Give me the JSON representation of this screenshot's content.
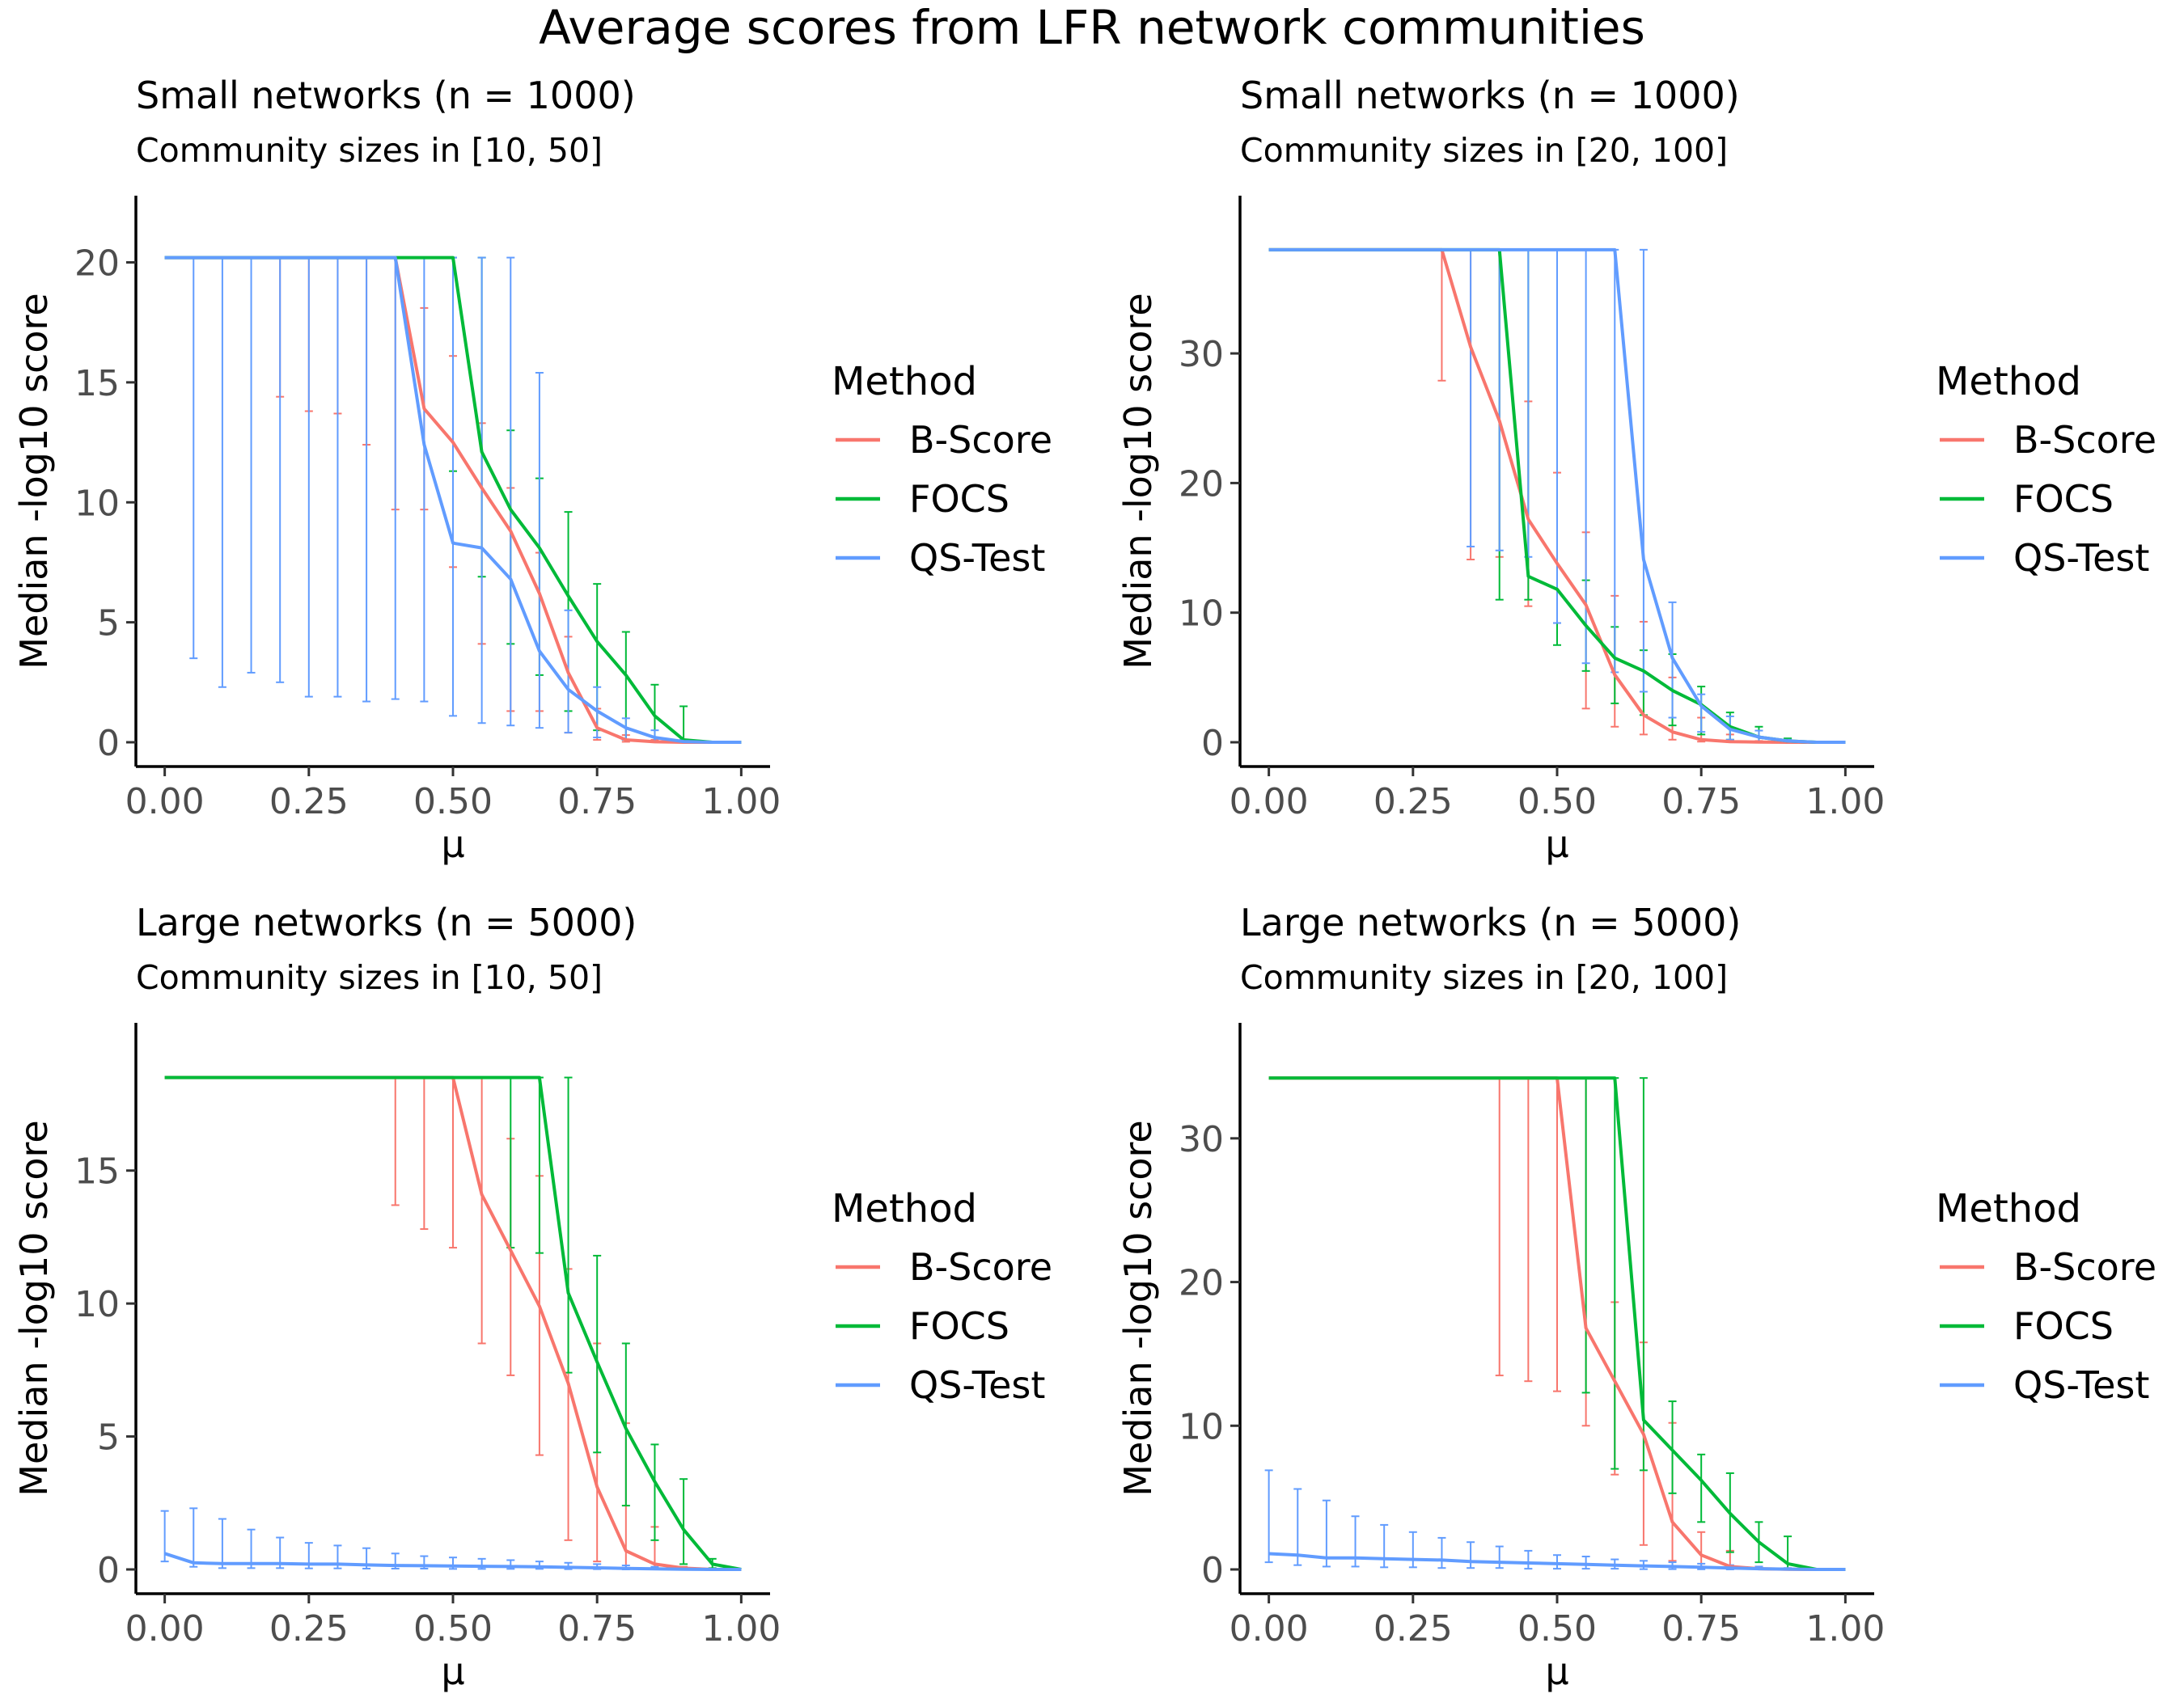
{
  "figure_title": "Average scores from LFR network communities",
  "colors": {
    "B-Score": "#F8766D",
    "FOCS": "#00BA38",
    "QS-Test": "#619CFF"
  },
  "chart_data": [
    {
      "type": "line",
      "title": "Small networks (n = 1000)",
      "subtitle": "Community sizes in [10, 50]",
      "xlabel": "μ",
      "ylabel": "Median -log10 score",
      "xlim": [
        0,
        1
      ],
      "ylim": [
        0,
        21.5
      ],
      "xticks": [
        0,
        0.25,
        0.5,
        0.75,
        1
      ],
      "xtick_labels": [
        "0.00",
        "0.25",
        "0.50",
        "0.75",
        "1.00"
      ],
      "yticks": [
        0,
        5,
        10,
        15,
        20
      ],
      "ytick_labels": [
        "0",
        "5",
        "10",
        "15",
        "20"
      ],
      "legend_title": "Method",
      "legend_position": "right",
      "x": [
        0,
        0.05,
        0.1,
        0.15,
        0.2,
        0.25,
        0.3,
        0.35,
        0.4,
        0.45,
        0.5,
        0.55,
        0.6,
        0.65,
        0.7,
        0.75,
        0.8,
        0.85,
        0.9,
        0.95,
        1.0
      ],
      "series": [
        {
          "name": "B-Score",
          "values": [
            20.2,
            20.2,
            20.2,
            20.2,
            20.2,
            20.2,
            20.2,
            20.2,
            20.2,
            13.9,
            12.5,
            10.6,
            8.8,
            6.2,
            2.9,
            0.6,
            0.1,
            0.02,
            0,
            0,
            0
          ],
          "lower": [
            null,
            null,
            null,
            null,
            14.4,
            13.8,
            13.7,
            12.4,
            9.7,
            9.7,
            7.3,
            4.1,
            1.3,
            1.3,
            0.4,
            0.1,
            0.02,
            0,
            0,
            0,
            0
          ],
          "upper": [
            null,
            null,
            null,
            null,
            20.2,
            20.2,
            20.2,
            20.2,
            20.2,
            18.1,
            16.1,
            13.3,
            10.6,
            7.9,
            4.4,
            1.4,
            0.3,
            0.1,
            0,
            0,
            0
          ]
        },
        {
          "name": "FOCS",
          "values": [
            20.2,
            20.2,
            20.2,
            20.2,
            20.2,
            20.2,
            20.2,
            20.2,
            20.2,
            20.2,
            20.2,
            12.1,
            9.7,
            8.1,
            6.1,
            4.2,
            2.8,
            1.1,
            0.1,
            0,
            0
          ],
          "lower": [
            null,
            null,
            null,
            null,
            null,
            null,
            null,
            null,
            null,
            null,
            11.3,
            6.9,
            4.1,
            2.8,
            1.3,
            0.5,
            0.1,
            0.02,
            0,
            0,
            0
          ],
          "upper": [
            null,
            null,
            null,
            null,
            null,
            null,
            null,
            null,
            null,
            null,
            20.2,
            20.2,
            13.0,
            11.0,
            9.6,
            6.6,
            4.6,
            2.4,
            1.5,
            0,
            0
          ]
        },
        {
          "name": "QS-Test",
          "values": [
            20.2,
            20.2,
            20.2,
            20.2,
            20.2,
            20.2,
            20.2,
            20.2,
            20.2,
            12.4,
            8.3,
            8.1,
            6.8,
            3.8,
            2.2,
            1.3,
            0.6,
            0.2,
            0.03,
            0,
            0
          ],
          "lower": [
            null,
            3.5,
            2.3,
            2.9,
            2.5,
            1.9,
            1.9,
            1.7,
            1.8,
            1.7,
            1.1,
            0.8,
            0.7,
            0.6,
            0.4,
            0.2,
            0.1,
            0.02,
            0,
            0,
            0
          ],
          "upper": [
            null,
            20.2,
            20.2,
            20.2,
            20.2,
            20.2,
            20.2,
            20.2,
            20.2,
            20.2,
            20.2,
            20.2,
            20.2,
            15.4,
            5.5,
            2.3,
            1.0,
            0.5,
            0.1,
            0,
            0
          ]
        }
      ]
    },
    {
      "type": "line",
      "title": "Small networks (n = 1000)",
      "subtitle": "Community sizes in [20, 100]",
      "xlabel": "μ",
      "ylabel": "Median -log10 score",
      "xlim": [
        0,
        1
      ],
      "ylim": [
        0,
        39.8
      ],
      "xticks": [
        0,
        0.25,
        0.5,
        0.75,
        1
      ],
      "xtick_labels": [
        "0.00",
        "0.25",
        "0.50",
        "0.75",
        "1.00"
      ],
      "yticks": [
        0,
        10,
        20,
        30
      ],
      "ytick_labels": [
        "0",
        "10",
        "20",
        "30"
      ],
      "legend_title": "Method",
      "legend_position": "right",
      "x": [
        0,
        0.05,
        0.1,
        0.15,
        0.2,
        0.25,
        0.3,
        0.35,
        0.4,
        0.45,
        0.5,
        0.55,
        0.6,
        0.65,
        0.7,
        0.75,
        0.8,
        0.85,
        0.9,
        0.95,
        1.0
      ],
      "series": [
        {
          "name": "B-Score",
          "values": [
            38,
            38,
            38,
            38,
            38,
            38,
            38,
            30.5,
            24.8,
            17.2,
            13.8,
            10.6,
            5.2,
            2.1,
            0.8,
            0.2,
            0.05,
            0.01,
            0,
            0,
            0
          ],
          "lower": [
            null,
            null,
            null,
            null,
            null,
            null,
            27.9,
            14.1,
            14.3,
            10.5,
            9.2,
            2.6,
            1.2,
            0.6,
            0.2,
            0.05,
            0.01,
            0,
            0,
            0,
            0
          ],
          "upper": [
            null,
            null,
            null,
            null,
            null,
            null,
            38,
            38,
            38,
            26.3,
            20.8,
            16.2,
            11.3,
            9.3,
            5.0,
            1.9,
            0.6,
            0.1,
            0,
            0,
            0
          ]
        },
        {
          "name": "FOCS",
          "values": [
            38,
            38,
            38,
            38,
            38,
            38,
            38,
            38,
            38,
            12.8,
            11.8,
            9.0,
            6.5,
            5.5,
            4.0,
            2.9,
            1.2,
            0.4,
            0.1,
            0,
            0
          ],
          "lower": [
            null,
            null,
            null,
            null,
            null,
            null,
            null,
            null,
            11.0,
            11.0,
            7.5,
            5.5,
            3.0,
            2.1,
            1.3,
            0.6,
            0.2,
            0.05,
            0,
            0,
            0
          ],
          "upper": [
            null,
            null,
            null,
            null,
            null,
            null,
            null,
            null,
            38,
            38,
            38,
            12.5,
            8.9,
            7.1,
            6.8,
            4.3,
            2.3,
            1.2,
            0.3,
            0,
            0
          ]
        },
        {
          "name": "QS-Test",
          "values": [
            38,
            38,
            38,
            38,
            38,
            38,
            38,
            38,
            38,
            38,
            38,
            38,
            38,
            14.1,
            6.5,
            2.8,
            1.0,
            0.4,
            0.1,
            0,
            0
          ],
          "lower": [
            null,
            null,
            null,
            null,
            null,
            null,
            null,
            15.1,
            14.8,
            14.3,
            9.2,
            6.1,
            5.4,
            3.9,
            1.9,
            0.8,
            0.2,
            0.05,
            0,
            0,
            0
          ],
          "upper": [
            null,
            null,
            null,
            null,
            null,
            null,
            null,
            38,
            38,
            38,
            38,
            38,
            38,
            38,
            10.8,
            3.7,
            2.0,
            0.9,
            0.2,
            0,
            0
          ]
        }
      ]
    },
    {
      "type": "line",
      "title": "Large networks (n = 5000)",
      "subtitle": "Community sizes in [10, 50]",
      "xlabel": "μ",
      "ylabel": "Median -log10 score",
      "xlim": [
        0,
        1
      ],
      "ylim": [
        0,
        19.4
      ],
      "xticks": [
        0,
        0.25,
        0.5,
        0.75,
        1
      ],
      "xtick_labels": [
        "0.00",
        "0.25",
        "0.50",
        "0.75",
        "1.00"
      ],
      "yticks": [
        0,
        5,
        10,
        15
      ],
      "ytick_labels": [
        "0",
        "5",
        "10",
        "15"
      ],
      "legend_title": "Method",
      "legend_position": "right",
      "x": [
        0,
        0.05,
        0.1,
        0.15,
        0.2,
        0.25,
        0.3,
        0.35,
        0.4,
        0.45,
        0.5,
        0.55,
        0.6,
        0.65,
        0.7,
        0.75,
        0.8,
        0.85,
        0.9,
        0.95,
        1.0
      ],
      "series": [
        {
          "name": "B-Score",
          "values": [
            18.5,
            18.5,
            18.5,
            18.5,
            18.5,
            18.5,
            18.5,
            18.5,
            18.5,
            18.5,
            18.5,
            14.1,
            12.0,
            9.9,
            7.0,
            3.1,
            0.7,
            0.2,
            0.05,
            0,
            0
          ],
          "lower": [
            null,
            null,
            null,
            null,
            null,
            null,
            null,
            null,
            13.7,
            12.8,
            12.1,
            8.5,
            7.3,
            4.3,
            1.1,
            0.3,
            0.05,
            0.01,
            0,
            0,
            0
          ],
          "upper": [
            null,
            null,
            null,
            null,
            null,
            null,
            null,
            null,
            18.5,
            18.5,
            18.5,
            18.5,
            16.2,
            14.8,
            11.3,
            8.5,
            5.5,
            1.6,
            0.1,
            0,
            0
          ]
        },
        {
          "name": "FOCS",
          "values": [
            18.5,
            18.5,
            18.5,
            18.5,
            18.5,
            18.5,
            18.5,
            18.5,
            18.5,
            18.5,
            18.5,
            18.5,
            18.5,
            18.5,
            10.4,
            7.8,
            5.3,
            3.3,
            1.5,
            0.2,
            0
          ],
          "lower": [
            null,
            null,
            null,
            null,
            null,
            null,
            null,
            null,
            null,
            null,
            null,
            null,
            12.1,
            11.9,
            7.4,
            4.4,
            2.4,
            1.1,
            0.2,
            0.05,
            0
          ],
          "upper": [
            null,
            null,
            null,
            null,
            null,
            null,
            null,
            null,
            null,
            null,
            null,
            null,
            18.5,
            18.5,
            18.5,
            11.8,
            8.5,
            4.7,
            3.4,
            0.4,
            0
          ]
        },
        {
          "name": "QS-Test",
          "values": [
            0.6,
            0.25,
            0.22,
            0.22,
            0.22,
            0.2,
            0.2,
            0.17,
            0.15,
            0.14,
            0.13,
            0.12,
            0.11,
            0.1,
            0.08,
            0.06,
            0.04,
            0.02,
            0.01,
            0,
            0
          ],
          "lower": [
            0.3,
            0.1,
            0.05,
            0.05,
            0.05,
            0.04,
            0.04,
            0.03,
            0.03,
            0.03,
            0.02,
            0.02,
            0.02,
            0.02,
            0.01,
            0.01,
            0,
            0,
            0,
            0,
            0
          ],
          "upper": [
            2.2,
            2.3,
            1.9,
            1.5,
            1.2,
            1.0,
            0.9,
            0.8,
            0.6,
            0.5,
            0.45,
            0.4,
            0.35,
            0.3,
            0.25,
            0.2,
            0.15,
            0.1,
            0.05,
            0,
            0
          ]
        }
      ]
    },
    {
      "type": "line",
      "title": "Large networks (n = 5000)",
      "subtitle": "Community sizes in [20, 100]",
      "xlabel": "μ",
      "ylabel": "Median -log10 score",
      "xlim": [
        0,
        1
      ],
      "ylim": [
        0,
        35.9
      ],
      "xticks": [
        0,
        0.25,
        0.5,
        0.75,
        1
      ],
      "xtick_labels": [
        "0.00",
        "0.25",
        "0.50",
        "0.75",
        "1.00"
      ],
      "yticks": [
        0,
        10,
        20,
        30
      ],
      "ytick_labels": [
        "0",
        "10",
        "20",
        "30"
      ],
      "legend_title": "Method",
      "legend_position": "right",
      "x": [
        0,
        0.05,
        0.1,
        0.15,
        0.2,
        0.25,
        0.3,
        0.35,
        0.4,
        0.45,
        0.5,
        0.55,
        0.6,
        0.65,
        0.7,
        0.75,
        0.8,
        0.85,
        0.9,
        0.95,
        1.0
      ],
      "series": [
        {
          "name": "B-Score",
          "values": [
            34.2,
            34.2,
            34.2,
            34.2,
            34.2,
            34.2,
            34.2,
            34.2,
            34.2,
            34.2,
            34.2,
            16.8,
            13.1,
            9.4,
            3.3,
            1.0,
            0.2,
            0.05,
            0.01,
            0,
            0
          ],
          "lower": [
            null,
            null,
            null,
            null,
            null,
            null,
            null,
            null,
            13.5,
            13.1,
            12.4,
            10.0,
            6.6,
            1.7,
            0.6,
            0.2,
            0.05,
            0.01,
            0,
            0,
            0
          ],
          "upper": [
            null,
            null,
            null,
            null,
            null,
            null,
            null,
            null,
            34.2,
            34.2,
            34.2,
            34.2,
            18.6,
            15.8,
            10.2,
            2.6,
            1.3,
            0.2,
            0.05,
            0,
            0
          ]
        },
        {
          "name": "FOCS",
          "values": [
            34.2,
            34.2,
            34.2,
            34.2,
            34.2,
            34.2,
            34.2,
            34.2,
            34.2,
            34.2,
            34.2,
            34.2,
            34.2,
            10.4,
            8.3,
            6.2,
            3.9,
            1.9,
            0.4,
            0,
            0
          ],
          "lower": [
            null,
            null,
            null,
            null,
            null,
            null,
            null,
            null,
            null,
            null,
            null,
            12.3,
            7.0,
            6.9,
            5.3,
            3.3,
            1.2,
            0.5,
            0.05,
            0,
            0
          ],
          "upper": [
            null,
            null,
            null,
            null,
            null,
            null,
            null,
            null,
            null,
            null,
            null,
            34.2,
            34.2,
            34.2,
            11.7,
            8.0,
            6.7,
            3.3,
            2.3,
            0,
            0
          ]
        },
        {
          "name": "QS-Test",
          "values": [
            1.1,
            1.0,
            0.8,
            0.8,
            0.75,
            0.7,
            0.65,
            0.55,
            0.5,
            0.45,
            0.4,
            0.35,
            0.3,
            0.25,
            0.2,
            0.15,
            0.1,
            0.05,
            0.02,
            0,
            0
          ],
          "lower": [
            0.5,
            0.3,
            0.2,
            0.2,
            0.15,
            0.15,
            0.1,
            0.1,
            0.1,
            0.05,
            0.05,
            0.05,
            0.05,
            0.02,
            0.02,
            0.01,
            0,
            0,
            0,
            0,
            0
          ],
          "upper": [
            6.9,
            5.6,
            4.8,
            3.7,
            3.1,
            2.6,
            2.2,
            1.9,
            1.6,
            1.3,
            1.0,
            0.9,
            0.7,
            0.6,
            0.5,
            0.4,
            0.3,
            0.2,
            0.1,
            0,
            0
          ]
        }
      ]
    }
  ]
}
